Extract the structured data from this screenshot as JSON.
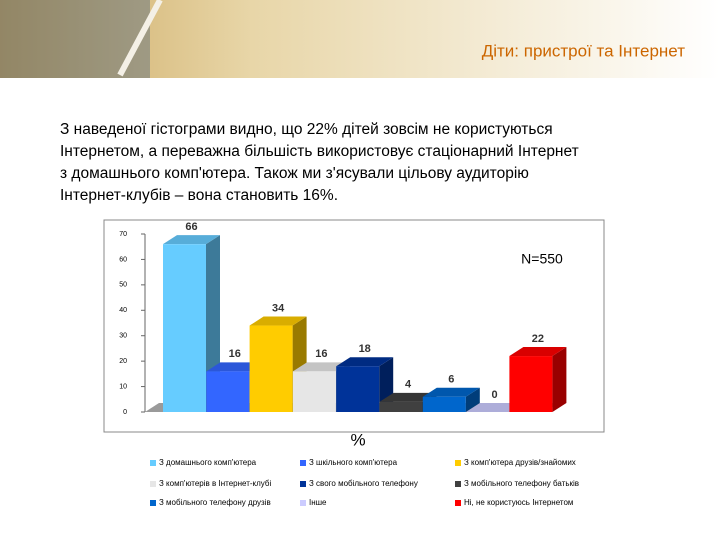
{
  "chart_data": {
    "type": "bar3d",
    "title": "Діти: пристрої та Інтернет",
    "annotation": "N=550",
    "unit_label": "%",
    "categories": [
      "З домашнього комп'ютера",
      "З шкільного комп'ютера",
      "З комп'ютера друзів/знайомих",
      "З комп'ютерів в Інтернет-клубі",
      "З свого мобільного телефону",
      "З мобільного телефону батьків",
      "З мобільного телефону друзів",
      "Інше",
      "Ні, не користуюсь Інтернетом"
    ],
    "values": [
      66,
      16,
      34,
      16,
      18,
      4,
      6,
      0,
      22
    ],
    "colors": [
      "#66ccff",
      "#3366ff",
      "#ffcc00",
      "#e6e6e6",
      "#003399",
      "#404040",
      "#0066cc",
      "#ccccff",
      "#ff0000"
    ],
    "ylim": [
      0,
      70
    ],
    "yticks": [
      0,
      10,
      20,
      30,
      40,
      50,
      60,
      70
    ]
  },
  "text": [
    "З наведеної гістограми видно, що 22% дітей зовсім не користуються",
    "Інтернетом, а переважна більшість використовує стаціонарний Інтернет",
    "з домашнього комп'ютера. Також ми з'ясували цільову аудиторію",
    "Інтернет-клубів – вона становить 16%."
  ]
}
